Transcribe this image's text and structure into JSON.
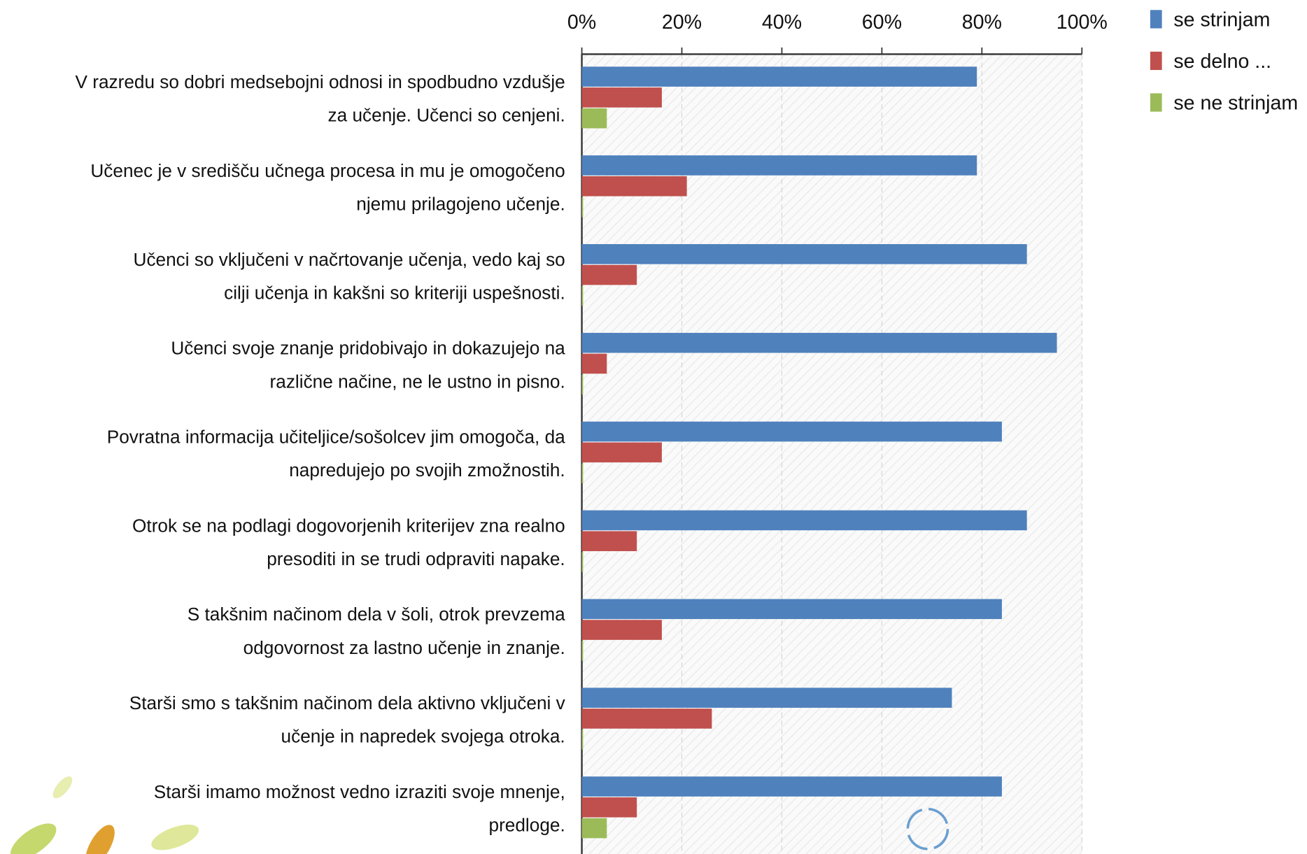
{
  "chart_data": {
    "type": "bar",
    "orientation": "horizontal",
    "categories": [
      [
        "V razredu so dobri medsebojni odnosi in spodbudno vzdušje",
        "za učenje. Učenci so cenjeni."
      ],
      [
        "Učenec je v središču učnega procesa in mu je omogočeno",
        "njemu prilagojeno učenje."
      ],
      [
        "Učenci so vključeni v načrtovanje učenja, vedo kaj so",
        "cilji učenja in kakšni so kriteriji uspešnosti."
      ],
      [
        "Učenci  svoje znanje pridobivajo in dokazujejo na",
        "različne načine, ne le ustno in pisno."
      ],
      [
        "Povratna informacija učiteljice/sošolcev jim omogoča, da",
        "napredujejo po svojih zmožnostih."
      ],
      [
        "Otrok se na podlagi dogovorjenih kriterijev zna realno",
        "presoditi in se trudi odpraviti napake."
      ],
      [
        "S takšnim načinom dela v šoli, otrok prevzema",
        "odgovornost za lastno učenje in znanje."
      ],
      [
        "Starši smo s takšnim načinom dela aktivno vključeni v",
        "učenje in napredek svojega otroka."
      ],
      [
        "Starši imamo možnost vedno izraziti svoje mnenje,",
        "predloge."
      ]
    ],
    "series": [
      {
        "name": "se strinjam",
        "color": "#4f81bd",
        "values": [
          79,
          79,
          89,
          95,
          84,
          89,
          84,
          74,
          84
        ]
      },
      {
        "name": "se delno ...",
        "color": "#c0504d",
        "values": [
          16,
          21,
          11,
          5,
          16,
          11,
          16,
          26,
          11
        ]
      },
      {
        "name": "se ne strinjam",
        "color": "#9bbb59",
        "values": [
          5,
          0,
          0,
          0,
          0,
          0,
          0,
          0,
          5
        ]
      }
    ],
    "xlim": [
      0,
      100
    ],
    "xticks": [
      {
        "value": 0,
        "label": "0%"
      },
      {
        "value": 20,
        "label": "20%"
      },
      {
        "value": 40,
        "label": "40%"
      },
      {
        "value": 60,
        "label": "60%"
      },
      {
        "value": 80,
        "label": "80%"
      },
      {
        "value": 100,
        "label": "100%"
      }
    ],
    "grid": true,
    "legend": "top-right"
  }
}
